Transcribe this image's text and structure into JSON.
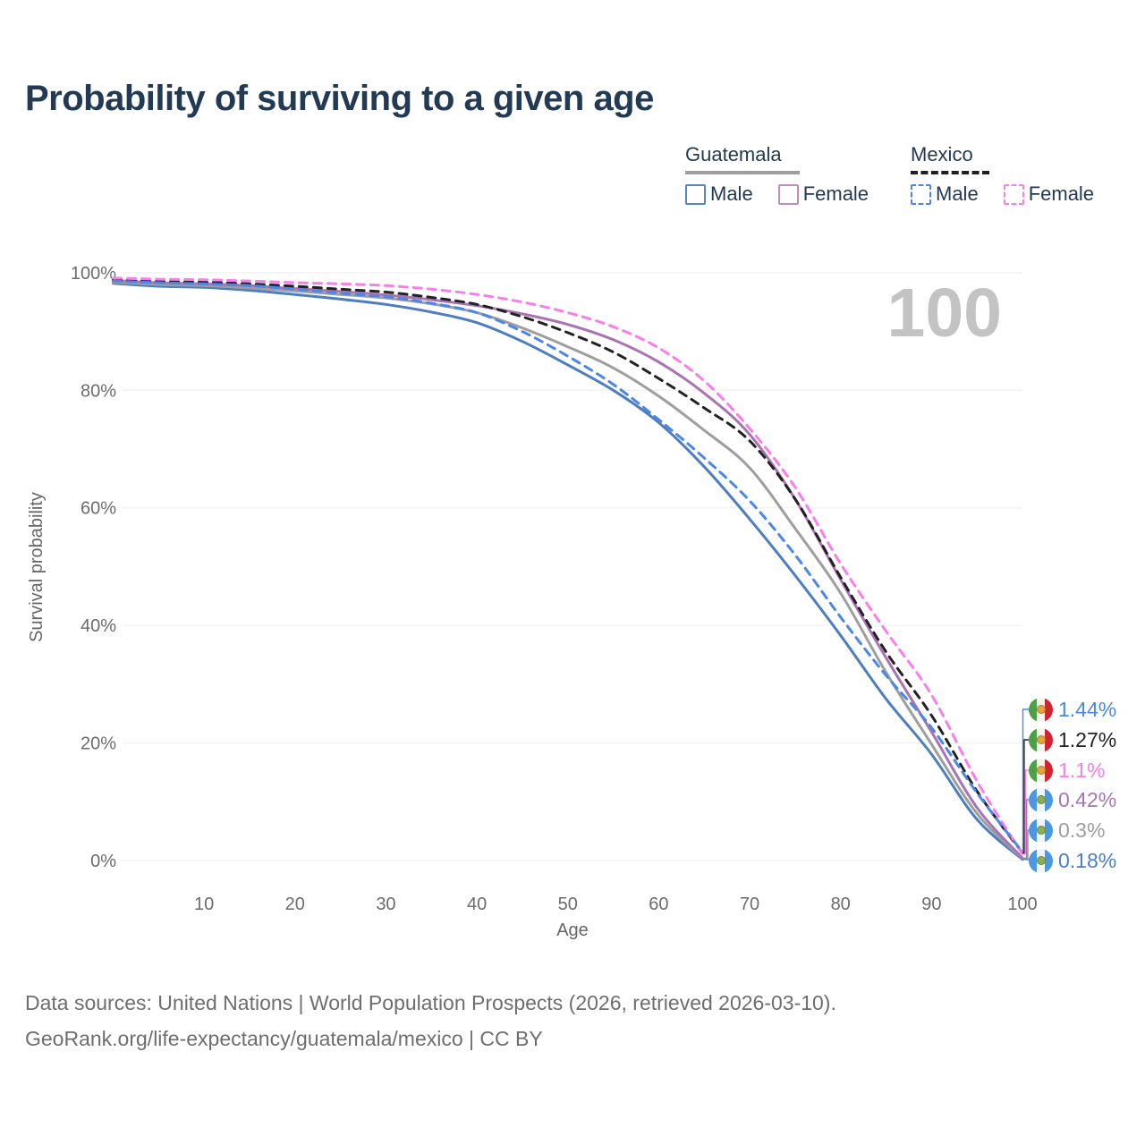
{
  "header": {
    "title": "Probability of surviving to a given age",
    "title_color": "#233a54"
  },
  "legend": {
    "groups": [
      {
        "name": "Guatemala",
        "line_style": "solid",
        "line_color": "#9e9e9e",
        "items": [
          {
            "label": "Male",
            "color": "#5585c4",
            "style": "solid"
          },
          {
            "label": "Female",
            "color": "#c08bc0",
            "style": "solid"
          }
        ]
      },
      {
        "name": "Mexico",
        "line_style": "dashed",
        "line_color": "#1f1f1f",
        "items": [
          {
            "label": "Male",
            "color": "#4b87e8",
            "style": "dashed"
          },
          {
            "label": "Female",
            "color": "#fb7deb",
            "style": "dashed"
          }
        ]
      }
    ]
  },
  "chart_data": {
    "type": "line",
    "title": "Probability of surviving to a given age",
    "xlabel": "Age",
    "ylabel": "Survival probability",
    "xlim": [
      0,
      100
    ],
    "ylim": [
      0,
      100
    ],
    "grid": "horizontal",
    "legend_position": "top-right",
    "watermark": "100",
    "xticks": [
      10,
      20,
      30,
      40,
      50,
      60,
      70,
      80,
      90,
      100
    ],
    "yticks": [
      {
        "value": 100,
        "label": "100%"
      },
      {
        "value": 80,
        "label": "80%"
      },
      {
        "value": 60,
        "label": "60%"
      },
      {
        "value": 40,
        "label": "40%"
      },
      {
        "value": 20,
        "label": "20%"
      },
      {
        "value": 0,
        "label": "0%"
      }
    ],
    "ages": [
      0,
      5,
      10,
      15,
      20,
      25,
      30,
      35,
      40,
      45,
      50,
      55,
      60,
      65,
      70,
      75,
      80,
      85,
      90,
      95,
      100
    ],
    "series": [
      {
        "id": "gt-male",
        "country": "Guatemala",
        "sex": "Male",
        "style": "solid",
        "color": "#4d7ec0",
        "flag": "gt",
        "end_label": "0.18%",
        "end_value": 0.18,
        "values": [
          98.2,
          97.7,
          97.5,
          97.0,
          96.3,
          95.5,
          94.6,
          93.3,
          91.5,
          88.3,
          84.3,
          80.0,
          74.5,
          67.0,
          58.1,
          48.5,
          38.3,
          27.5,
          18.1,
          7.0,
          0.18
        ]
      },
      {
        "id": "gt-total",
        "country": "Guatemala",
        "sex": "Both sexes",
        "style": "solid",
        "color": "#9e9e9e",
        "flag": "gt",
        "end_label": "0.3%",
        "end_value": 0.3,
        "values": [
          98.4,
          98.0,
          97.8,
          97.4,
          96.9,
          96.3,
          95.7,
          94.7,
          93.2,
          90.6,
          87.4,
          83.8,
          79.0,
          73.2,
          66.8,
          56.5,
          45.5,
          32.0,
          19.8,
          8.0,
          0.3
        ]
      },
      {
        "id": "gt-female",
        "country": "Guatemala",
        "sex": "Female",
        "style": "solid",
        "color": "#a974b4",
        "flag": "gt",
        "end_label": "0.42%",
        "end_value": 0.42,
        "values": [
          98.7,
          98.3,
          98.1,
          97.8,
          97.3,
          96.8,
          96.2,
          95.4,
          94.4,
          93.0,
          91.2,
          88.6,
          84.8,
          79.5,
          72.5,
          61.5,
          47.8,
          34.5,
          21.9,
          9.0,
          0.42
        ]
      },
      {
        "id": "mx-total",
        "country": "Mexico",
        "sex": "Both sexes",
        "style": "dashed",
        "color": "#222222",
        "flag": "mx",
        "end_label": "1.27%",
        "end_value": 1.27,
        "values": [
          98.8,
          98.5,
          98.4,
          98.1,
          97.7,
          97.2,
          96.7,
          95.8,
          94.6,
          92.5,
          89.8,
          86.5,
          82.0,
          77.0,
          71.4,
          61.5,
          48.2,
          35.5,
          24.7,
          11.8,
          1.27
        ]
      },
      {
        "id": "mx-female",
        "country": "Mexico",
        "sex": "Female",
        "style": "dashed",
        "color": "#fb7deb",
        "flag": "mx",
        "end_label": "1.1%",
        "end_value": 1.1,
        "values": [
          99.1,
          98.9,
          98.8,
          98.6,
          98.3,
          98.1,
          97.8,
          97.2,
          96.3,
          95.0,
          93.2,
          90.8,
          87.2,
          81.6,
          73.5,
          63.5,
          50.5,
          39.0,
          28.2,
          13.5,
          1.1
        ]
      },
      {
        "id": "mx-male",
        "country": "Mexico",
        "sex": "Male",
        "style": "dashed",
        "color": "#4b87e8",
        "flag": "mx",
        "end_label": "1.44%",
        "end_value": 1.44,
        "values": [
          98.6,
          98.3,
          98.1,
          97.8,
          97.2,
          96.5,
          95.9,
          94.8,
          93.2,
          90.0,
          85.8,
          81.0,
          75.0,
          68.5,
          61.2,
          52.0,
          41.4,
          31.5,
          22.6,
          11.5,
          1.44
        ]
      }
    ]
  },
  "footer": {
    "line1": "Data sources: United Nations | World Population Prospects (2026, retrieved 2026-03-10).",
    "line2": "GeoRank.org/life-expectancy/guatemala/mexico | CC BY"
  }
}
